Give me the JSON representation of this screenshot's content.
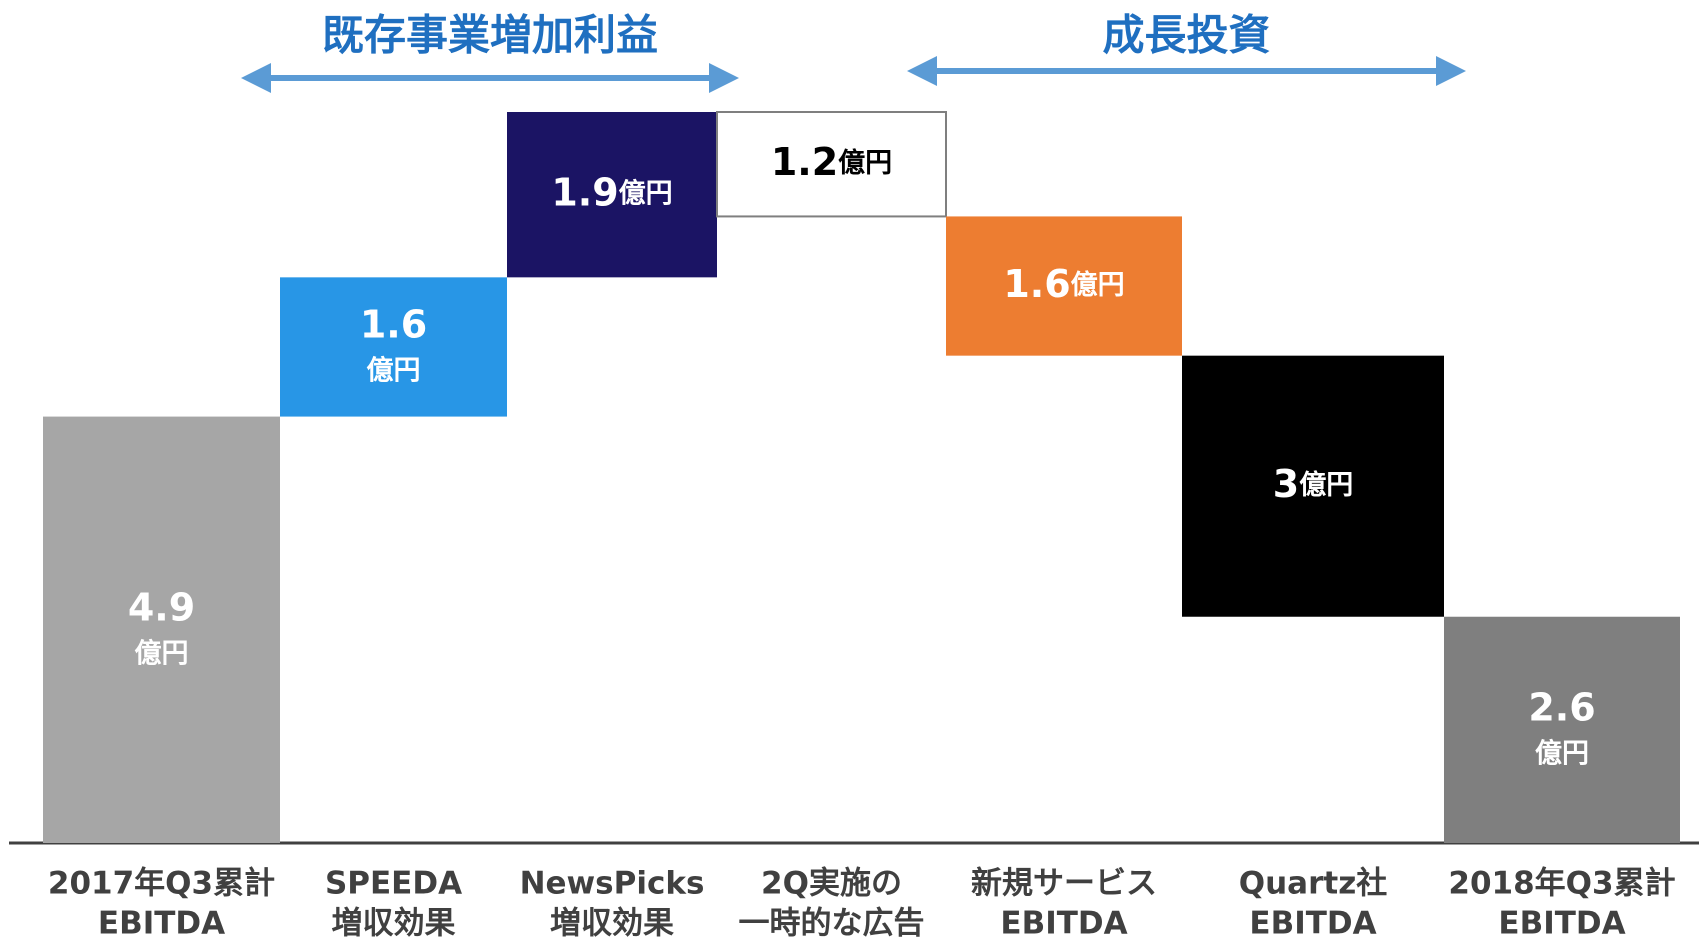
{
  "chart_data": {
    "type": "waterfall",
    "categories": [
      [
        "2017年Q3累計",
        "EBITDA"
      ],
      [
        "SPEEDA",
        "増収効果"
      ],
      [
        "NewsPicks",
        "増収効果"
      ],
      [
        "2Q実施の",
        "一時的な広告"
      ],
      [
        "新規サービス",
        "EBITDA"
      ],
      [
        "Quartz社",
        "EBITDA"
      ],
      [
        "2018年Q3累計",
        "EBITDA"
      ]
    ],
    "values": [
      4.9,
      1.6,
      1.9,
      1.2,
      1.6,
      3.0,
      2.6
    ],
    "unit": "億円",
    "measure": [
      "absolute",
      "increase",
      "increase",
      "decrease",
      "decrease",
      "decrease",
      "total"
    ],
    "colors": [
      "#a6a6a6",
      "#2896e6",
      "#1b1464",
      "#ffffff",
      "#ed7d31",
      "#000000",
      "#7f7f7f"
    ],
    "groups": [
      {
        "label": "既存事業増加利益",
        "from": 1,
        "to": 2
      },
      {
        "label": "成長投資",
        "from": 4,
        "to": 5
      }
    ]
  }
}
